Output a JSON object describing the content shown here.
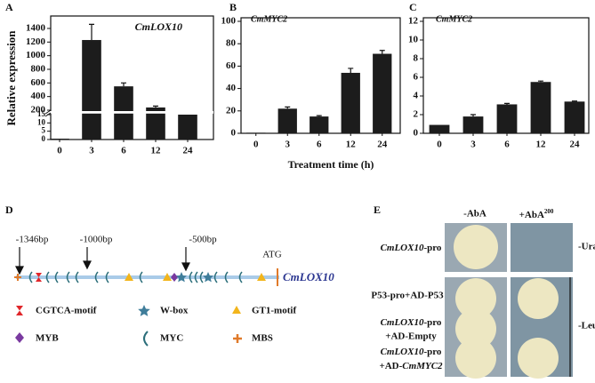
{
  "chart_data": [
    {
      "type": "bar",
      "title": "CmLOX10",
      "ylabel": "Relative expression",
      "categories": [
        "0",
        "3",
        "6",
        "12",
        "24"
      ],
      "values": [
        0.5,
        1230,
        550,
        240,
        15
      ],
      "errors": [
        0,
        230,
        50,
        20,
        0
      ],
      "color": "#1c1c1c",
      "ylim": [
        0,
        1400
      ],
      "ybreak": [
        15,
        200
      ],
      "yticks": [
        0,
        5,
        10,
        15,
        200,
        400,
        600,
        800,
        1000,
        1200,
        1400
      ]
    },
    {
      "type": "bar",
      "title": "CmMYC2",
      "xlabel": "Treatment time (h)",
      "categories": [
        "0",
        "3",
        "6",
        "12",
        "24"
      ],
      "values": [
        0.5,
        22,
        15,
        54,
        71
      ],
      "errors": [
        0,
        1.5,
        0.8,
        4,
        3
      ],
      "color": "#1c1c1c",
      "ylim": [
        0,
        100
      ],
      "yticks": [
        0,
        20,
        40,
        60,
        80,
        100
      ]
    },
    {
      "type": "bar",
      "title": "CmMYC2",
      "categories": [
        "0",
        "3",
        "6",
        "12",
        "24"
      ],
      "values": [
        0.9,
        1.8,
        3.1,
        5.5,
        3.4
      ],
      "errors": [
        0,
        0.2,
        0.1,
        0.1,
        0.05
      ],
      "color": "#1c1c1c",
      "ylim": [
        0,
        12
      ],
      "yticks": [
        0,
        2,
        4,
        6,
        8,
        10,
        12
      ]
    }
  ],
  "panel_labels": [
    "A",
    "B",
    "C",
    "D",
    "E"
  ],
  "promoter": {
    "positions": [
      "-1346bp",
      "-1000bp",
      "-500bp"
    ],
    "start": "ATG",
    "gene": "CmLOX10",
    "legend": [
      "CGTCA-motif",
      "W-box",
      "GT1-motif",
      "MYB",
      "MYC",
      "MBS"
    ]
  },
  "yeast": {
    "columns": [
      [
        "-AbA"
      ],
      [
        "+AbA",
        "200"
      ]
    ],
    "rows": [
      [
        "CmLOX10",
        "-pro"
      ],
      [
        "P53-pro+AD-P53"
      ],
      [
        "CmLOX10",
        "-pro",
        "+AD-Empty"
      ],
      [
        "CmLOX10",
        "-pro",
        "+AD-",
        "CmMYC2"
      ]
    ],
    "media": [
      "-Ura",
      "-Leu"
    ]
  }
}
